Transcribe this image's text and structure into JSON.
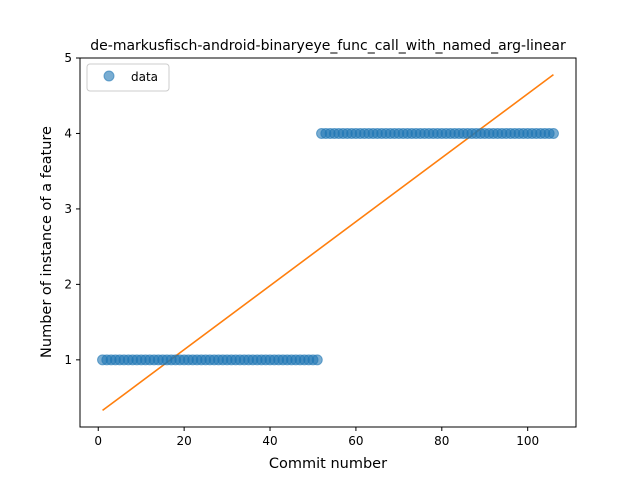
{
  "chart_data": {
    "type": "scatter",
    "title": "de-markusfisch-android-binaryeye_func_call_with_named_arg-linear",
    "xlabel": "Commit number",
    "ylabel": "Number of instance of a feature",
    "xlim": [
      -4.25,
      111.25
    ],
    "ylim": [
      0.11,
      5.0
    ],
    "xticks": [
      0,
      20,
      40,
      60,
      80,
      100
    ],
    "yticks": [
      1,
      2,
      3,
      4,
      5
    ],
    "grid": false,
    "legend": {
      "position": "upper-left",
      "entries": [
        "data"
      ]
    },
    "series": [
      {
        "name": "data",
        "kind": "scatter",
        "color": "#1f77b4",
        "segments": [
          {
            "x_from": 1,
            "x_to": 51,
            "y": 1
          },
          {
            "x_from": 52,
            "x_to": 106,
            "y": 4
          }
        ]
      },
      {
        "kind": "line",
        "color": "#ff7f0e",
        "x": [
          1,
          106
        ],
        "y": [
          0.33,
          4.78
        ]
      }
    ]
  }
}
